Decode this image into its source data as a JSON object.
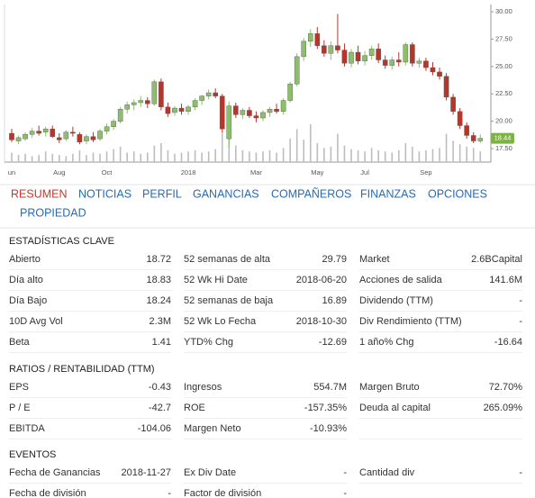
{
  "chart_data": {
    "type": "candlestick",
    "categories": [
      "un",
      null,
      null,
      null,
      null,
      null,
      null,
      "Aug",
      null,
      null,
      null,
      null,
      null,
      null,
      "Oct",
      null,
      null,
      null,
      null,
      null,
      null,
      null,
      null,
      null,
      null,
      null,
      "2018",
      null,
      null,
      null,
      null,
      null,
      null,
      null,
      null,
      null,
      "Mar",
      null,
      null,
      null,
      null,
      null,
      null,
      null,
      null,
      "May",
      null,
      null,
      null,
      null,
      null,
      null,
      "Jul",
      null,
      null,
      null,
      null,
      null,
      null,
      null,
      null,
      "Sep",
      null,
      null,
      null,
      null,
      null,
      null,
      null,
      null
    ],
    "open": [
      18.9,
      18.2,
      18.4,
      18.8,
      19.1,
      19.0,
      19.3,
      18.5,
      18.4,
      19.0,
      18.8,
      18.2,
      18.6,
      18.4,
      19.1,
      19.5,
      20.0,
      21.1,
      21.5,
      21.7,
      21.9,
      21.6,
      23.6,
      21.3,
      20.8,
      21.2,
      20.9,
      21.3,
      21.9,
      22.3,
      22.6,
      22.3,
      18.4,
      21.4,
      20.6,
      21.0,
      20.5,
      20.3,
      20.8,
      21.1,
      20.9,
      21.9,
      23.4,
      25.9,
      27.3,
      28.0,
      26.9,
      26.2,
      26.9,
      26.5,
      25.3,
      26.3,
      25.5,
      26.0,
      26.6,
      25.6,
      25.1,
      25.6,
      25.4,
      27.0,
      25.3,
      25.5,
      24.9,
      24.5,
      24.1,
      22.2,
      20.9,
      19.6,
      18.7,
      18.2
    ],
    "high": [
      19.3,
      18.7,
      19.0,
      19.4,
      19.6,
      19.5,
      19.6,
      18.9,
      19.2,
      19.5,
      19.0,
      18.8,
      19.0,
      19.3,
      19.8,
      20.2,
      21.3,
      21.8,
      22.0,
      22.3,
      22.2,
      23.8,
      23.9,
      21.7,
      21.4,
      21.6,
      21.5,
      22.1,
      22.4,
      22.9,
      23.0,
      22.5,
      21.8,
      21.7,
      21.2,
      21.3,
      20.9,
      21.0,
      21.3,
      21.6,
      22.1,
      23.6,
      26.2,
      27.6,
      28.4,
      28.6,
      27.4,
      27.3,
      29.8,
      27.1,
      26.6,
      26.9,
      26.4,
      26.9,
      27.1,
      26.0,
      25.9,
      26.3,
      27.2,
      27.2,
      25.8,
      25.8,
      25.4,
      24.9,
      24.4,
      22.5,
      21.2,
      19.9,
      19.0,
      18.8
    ],
    "low": [
      18.1,
      17.9,
      18.2,
      18.5,
      18.7,
      18.6,
      18.5,
      18.0,
      18.2,
      18.6,
      17.9,
      17.9,
      18.1,
      18.2,
      18.8,
      19.2,
      19.8,
      20.7,
      21.0,
      21.3,
      21.2,
      21.4,
      21.0,
      20.4,
      20.5,
      20.6,
      20.6,
      21.0,
      21.5,
      22.0,
      22.1,
      19.0,
      17.6,
      20.3,
      20.2,
      20.3,
      19.9,
      20.0,
      20.4,
      20.7,
      20.6,
      21.7,
      23.2,
      25.5,
      26.8,
      26.6,
      25.9,
      25.6,
      26.2,
      25.0,
      24.9,
      25.2,
      25.1,
      25.6,
      25.3,
      24.8,
      24.7,
      25.0,
      25.1,
      25.0,
      24.9,
      24.6,
      24.2,
      23.8,
      21.9,
      20.6,
      19.3,
      18.4,
      18.0,
      18.0
    ],
    "close": [
      18.3,
      18.5,
      18.8,
      19.1,
      18.9,
      19.3,
      18.6,
      18.3,
      19.0,
      18.9,
      18.1,
      18.6,
      18.3,
      19.1,
      19.5,
      20.0,
      21.1,
      21.5,
      21.7,
      21.9,
      21.6,
      23.6,
      21.3,
      20.7,
      21.2,
      20.9,
      21.3,
      21.9,
      22.3,
      22.6,
      22.3,
      19.3,
      21.4,
      20.6,
      21.0,
      20.5,
      20.3,
      20.8,
      21.1,
      20.9,
      21.9,
      23.4,
      25.9,
      27.3,
      28.0,
      26.9,
      26.2,
      26.9,
      26.5,
      25.3,
      26.3,
      25.5,
      26.0,
      26.6,
      25.6,
      25.1,
      25.6,
      25.4,
      27.0,
      25.3,
      25.5,
      24.9,
      24.5,
      24.1,
      22.2,
      20.9,
      19.6,
      18.7,
      18.2,
      18.44
    ],
    "volume": [
      0.8,
      0.6,
      0.7,
      0.5,
      0.6,
      0.9,
      0.7,
      0.6,
      0.5,
      0.7,
      1.0,
      0.6,
      0.8,
      0.7,
      0.9,
      1.1,
      1.3,
      0.8,
      0.9,
      0.7,
      0.8,
      1.4,
      1.6,
      1.0,
      0.7,
      0.8,
      0.9,
      1.0,
      0.8,
      0.9,
      1.1,
      2.6,
      3.0,
      1.4,
      1.0,
      0.9,
      0.8,
      0.9,
      1.0,
      0.8,
      1.2,
      2.0,
      2.8,
      1.9,
      3.2,
      1.6,
      1.2,
      1.3,
      2.4,
      1.4,
      1.1,
      1.0,
      0.9,
      1.2,
      1.0,
      0.9,
      0.8,
      1.0,
      1.6,
      1.3,
      0.9,
      1.0,
      1.1,
      1.2,
      2.4,
      1.8,
      1.5,
      1.3,
      1.2,
      0.9
    ],
    "ylim": [
      16.27,
      30.66
    ],
    "yticks": [
      {
        "value": 30,
        "label": "30.00"
      },
      {
        "value": 27.5,
        "label": "27.50"
      },
      {
        "value": 25,
        "label": "25.00"
      },
      {
        "value": 22.5,
        "label": "22.50"
      },
      {
        "value": 20,
        "label": "20.00"
      },
      {
        "value": 17.5,
        "label": "17.50"
      }
    ],
    "up_color": "#8dbf6a",
    "down_color": "#b5372b",
    "volume_color": "#bdbdbd",
    "last_price_color": "#7cb342"
  },
  "tabs": [
    "RESUMEN",
    "NOTICIAS",
    "PERFIL",
    "GANANCIAS",
    "COMPAÑEROS",
    "FINANZAS",
    "OPCIONES",
    "PROPIEDAD"
  ],
  "sections": [
    {
      "title": "ESTADÍSTICAS CLAVE",
      "rows": [
        [
          "Abierto",
          "18.72",
          "52 semanas de alta",
          "29.79",
          "Market",
          "2.6BCapital"
        ],
        [
          "Día alto",
          "18.83",
          "52 Wk Hi Date",
          "2018-06-20",
          "Acciones de salida",
          "141.6M"
        ],
        [
          "Día Bajo",
          "18.24",
          "52 semanas de baja",
          "16.89",
          "Dividendo (TTM)",
          "-"
        ],
        [
          "10D Avg Vol",
          "2.3M",
          "52 Wk Lo Fecha",
          "2018-10-30",
          "Div Rendimiento (TTM)",
          "-"
        ],
        [
          "Beta",
          "1.41",
          "YTD% Chg",
          "-12.69",
          "1 año% Chg",
          "-16.64"
        ]
      ]
    },
    {
      "title": "RATIOS / RENTABILIDAD (TTM)",
      "rows": [
        [
          "EPS",
          "-0.43",
          "Ingresos",
          "554.7M",
          "Margen Bruto",
          "72.70%"
        ],
        [
          "P / E",
          "-42.7",
          "ROE",
          "-157.35%",
          "Deuda al capital",
          "265.09%"
        ],
        [
          "EBITDA",
          "-104.06",
          "Margen Neto",
          "-10.93%"
        ]
      ]
    },
    {
      "title": "EVENTOS",
      "rows": [
        [
          "Fecha de Ganancias",
          "2018-11-27",
          "Ex Div Date",
          "-",
          "Cantidad div",
          "-"
        ],
        [
          "Fecha de división",
          "-",
          "Factor de división",
          "-"
        ]
      ]
    }
  ]
}
